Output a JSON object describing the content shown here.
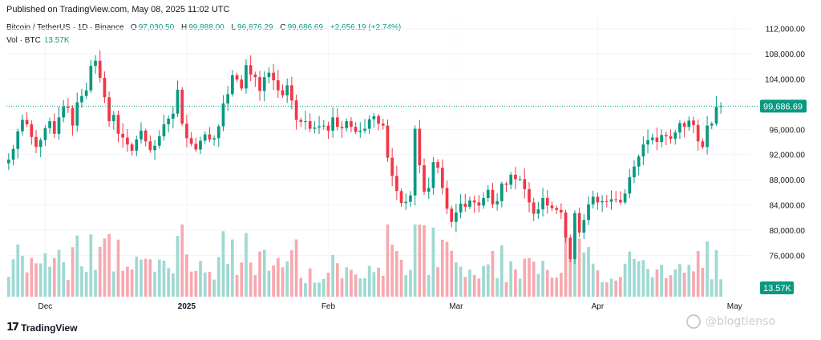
{
  "publisher": "Published on TradingView.com, May 08, 2025 11:02 UTC",
  "legend": {
    "symbol": "Bitcoin / TetherUS · 1D · Binance",
    "o_label": "O",
    "o_value": "97,030.50",
    "h_label": "H",
    "h_value": "99,888.00",
    "l_label": "L",
    "l_value": "96,876.29",
    "c_label": "C",
    "c_value": "99,686.69",
    "change": "+2,656.19 (+2.74%)"
  },
  "volume_legend": {
    "label": "Vol · BTC",
    "value": "13.57K"
  },
  "footer": {
    "brand": "TradingView"
  },
  "watermark": {
    "text": "@blogtienso"
  },
  "colors": {
    "up": "#089981",
    "down": "#f23645",
    "vol_up": "#9ed9d2",
    "vol_down": "#f7a9b0"
  },
  "chart_data": {
    "type": "candlestick",
    "price_axis": {
      "ticks": [
        "112,000.00",
        "108,000.00",
        "104,000.00",
        "100,000.00",
        "96,000.00",
        "92,000.00",
        "88,000.00",
        "84,000.00",
        "80,000.00",
        "76,000.00"
      ],
      "tick_values": [
        112000,
        108000,
        104000,
        100000,
        96000,
        92000,
        88000,
        84000,
        80000,
        76000
      ],
      "range": [
        73500,
        114000
      ],
      "last_price_label": "99,686.69",
      "last_price": 99686.69
    },
    "volume_label": "13.57K",
    "time_axis": {
      "labels": [
        "Dec",
        "2025",
        "Feb",
        "Mar",
        "Apr",
        "May"
      ],
      "label_index": [
        8,
        39,
        70,
        98,
        129,
        159
      ]
    },
    "closes": [
      91200,
      92900,
      95700,
      97500,
      96800,
      94800,
      93200,
      94300,
      96200,
      97300,
      95300,
      97900,
      99600,
      99400,
      96600,
      100300,
      101300,
      102200,
      106100,
      106900,
      104200,
      101100,
      97300,
      98300,
      95300,
      94700,
      93600,
      92600,
      94400,
      95800,
      94100,
      92700,
      93400,
      94900,
      96800,
      97700,
      98500,
      102300,
      96900,
      94600,
      93700,
      92800,
      94200,
      95200,
      94400,
      94600,
      96500,
      100100,
      101600,
      104600,
      103900,
      102500,
      106200,
      104700,
      104300,
      102100,
      104300,
      105000,
      103800,
      102200,
      101400,
      103000,
      100600,
      97500,
      97200,
      97300,
      96100,
      96300,
      96500,
      96600,
      95800,
      97900,
      96400,
      96200,
      97300,
      96400,
      95600,
      95800,
      96100,
      97600,
      98100,
      96900,
      96600,
      91500,
      88600,
      86200,
      84300,
      84500,
      85500,
      96100,
      90300,
      86100,
      86700,
      90800,
      89900,
      86700,
      83400,
      81300,
      82800,
      84200,
      83700,
      84700,
      84400,
      83900,
      85100,
      86400,
      84100,
      84600,
      87400,
      87200,
      88800,
      88100,
      88100,
      86500,
      84400,
      82600,
      83300,
      85100,
      83900,
      83500,
      83200,
      82800,
      78800,
      75400,
      82700,
      79600,
      81600,
      84100,
      85300,
      84400,
      84600,
      84500,
      84900,
      84800,
      84400,
      85800,
      88400,
      90100,
      91700,
      93600,
      94300,
      94700,
      94000,
      95100,
      94900,
      94500,
      95500,
      97000,
      96400,
      97400,
      96700,
      94100,
      93200,
      96600,
      96900,
      99600,
      99700
    ]
  }
}
